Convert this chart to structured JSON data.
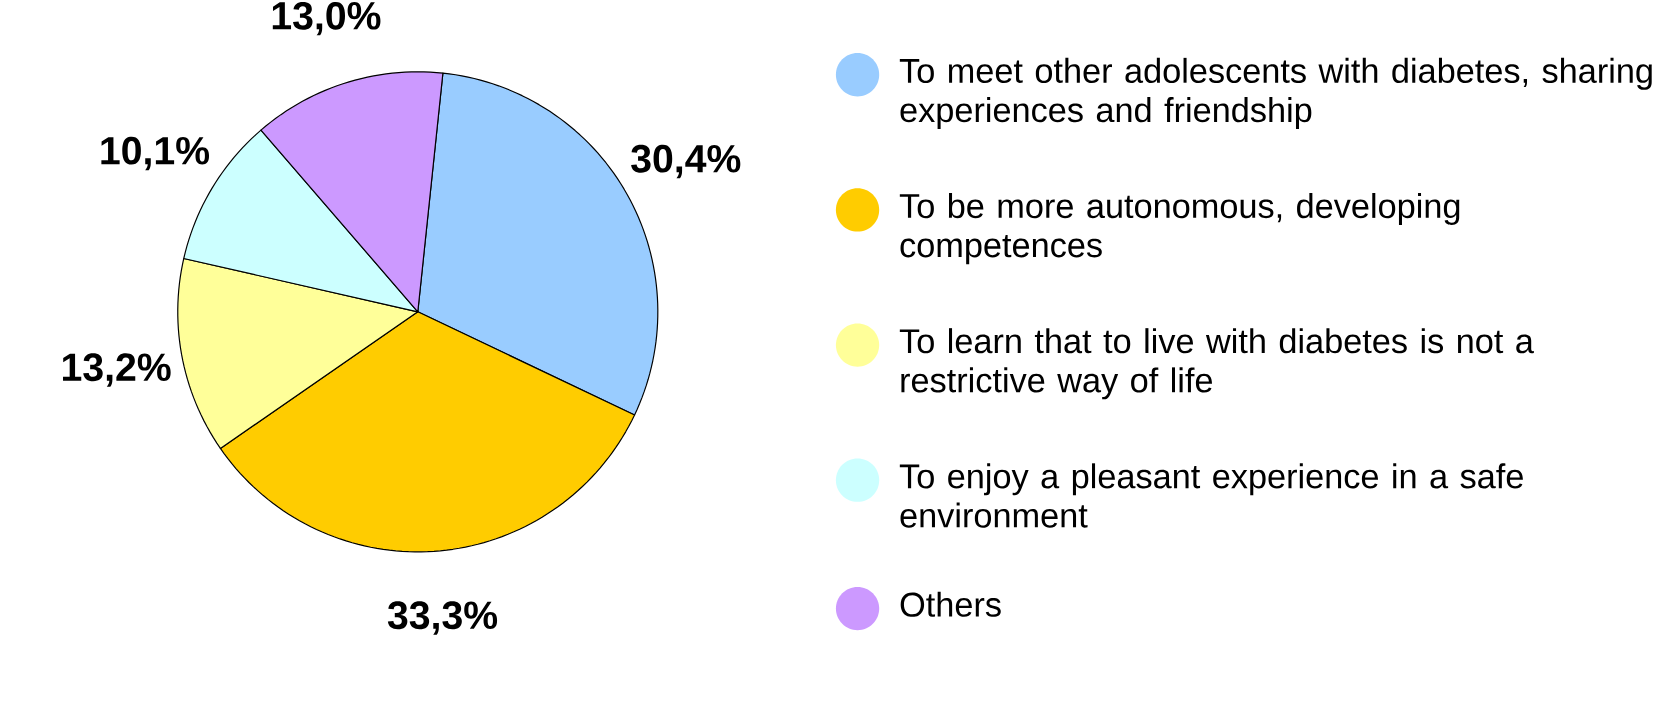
{
  "chart_data": {
    "type": "pie",
    "categories": [
      "To meet other adolescents with diabetes, sharing experiences and friendship",
      "To be more autonomous, developing competences",
      "To learn that to live with diabetes is not a restrictive way of life",
      "To enjoy a pleasant experience in a safe environment",
      "Others"
    ],
    "values": [
      30.4,
      33.3,
      13.2,
      10.1,
      13.0
    ],
    "colors": [
      "#99ccff",
      "#ffcc00",
      "#ffff99",
      "#ccffff",
      "#cc99ff"
    ],
    "value_labels": [
      "30,4%",
      "33,3%",
      "13,2%",
      "10,1%",
      "13,0%"
    ],
    "legend": "right"
  }
}
